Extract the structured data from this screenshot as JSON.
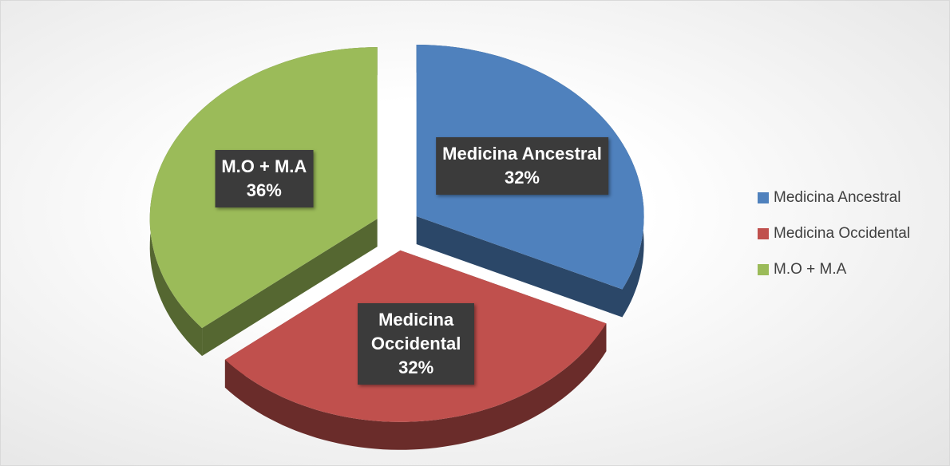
{
  "chart_data": {
    "type": "pie",
    "categories": [
      "Medicina Ancestral",
      "Medicina Occidental",
      "M.O + M.A"
    ],
    "values": [
      32,
      32,
      36
    ],
    "value_labels": [
      "32%",
      "32%",
      "36%"
    ],
    "colors": [
      "#4f81bd",
      "#c0504d",
      "#9bbb59"
    ],
    "legend": "right"
  }
}
